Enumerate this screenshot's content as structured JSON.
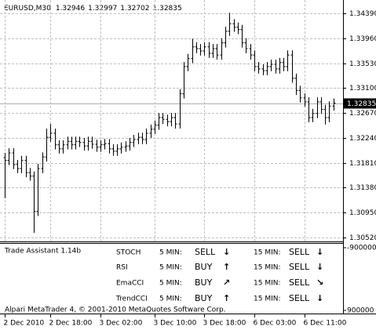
{
  "chart_data": {
    "type": "ohlc",
    "title": "EURUSD,M30",
    "header_ohlc": [
      1.32946,
      1.32997,
      1.32702,
      1.32835
    ],
    "current_price": 1.32835,
    "color": "#000000",
    "grid": true,
    "ylim": [
      1.30452,
      1.34552
    ],
    "yticks": [
      {
        "value": 1.3439,
        "label": "1.34390"
      },
      {
        "value": 1.3396,
        "label": "1.33960"
      },
      {
        "value": 1.3353,
        "label": "1.33530"
      },
      {
        "value": 1.331,
        "label": "1.33100"
      },
      {
        "value": 1.3267,
        "label": "1.32670"
      },
      {
        "value": 1.3224,
        "label": "1.32240"
      },
      {
        "value": 1.3181,
        "label": "1.31810"
      },
      {
        "value": 1.3138,
        "label": "1.31380"
      },
      {
        "value": 1.3095,
        "label": "1.30950"
      },
      {
        "value": 1.3052,
        "label": "1.30520"
      }
    ],
    "categories": [
      "2 Dec 2010",
      null,
      null,
      null,
      null,
      null,
      null,
      null,
      null,
      null,
      null,
      "2 Dec 18:00",
      null,
      null,
      null,
      null,
      null,
      null,
      null,
      null,
      null,
      null,
      null,
      "3 Dec 02:00",
      null,
      null,
      null,
      null,
      null,
      null,
      null,
      null,
      null,
      null,
      null,
      null,
      "3 Dec 10:00",
      null,
      null,
      null,
      null,
      null,
      null,
      null,
      null,
      null,
      null,
      null,
      "3 Dec 18:00",
      null,
      null,
      null,
      null,
      null,
      null,
      null,
      null,
      null,
      null,
      null,
      "6 Dec 03:00",
      null,
      null,
      null,
      null,
      null,
      null,
      null,
      null,
      null,
      null,
      null,
      "6 Dec 11:00",
      null,
      null,
      null,
      null,
      null,
      null,
      null
    ],
    "open": [
      1.319,
      1.3185,
      1.3198,
      1.3178,
      1.3171,
      1.3185,
      1.3164,
      1.3158,
      1.3097,
      1.3171,
      1.3191,
      1.3225,
      1.3232,
      1.3212,
      1.3205,
      1.3212,
      1.3218,
      1.3212,
      1.3218,
      1.3216,
      1.321,
      1.3218,
      1.3213,
      1.3208,
      1.3212,
      1.3214,
      1.3205,
      1.3201,
      1.3205,
      1.3208,
      1.321,
      1.3216,
      1.3221,
      1.3225,
      1.3221,
      1.3232,
      1.3239,
      1.3246,
      1.3259,
      1.3256,
      1.3252,
      1.3259,
      1.3248,
      1.33,
      1.3347,
      1.3361,
      1.3381,
      1.3378,
      1.3374,
      1.3381,
      1.337,
      1.3378,
      1.3367,
      1.3388,
      1.3408,
      1.3421,
      1.3415,
      1.3411,
      1.3388,
      1.3378,
      1.3367,
      1.3347,
      1.3343,
      1.334,
      1.3347,
      1.3351,
      1.3343,
      1.3354,
      1.3347,
      1.3367,
      1.3327,
      1.3306,
      1.3293,
      1.3286,
      1.3259,
      1.3266,
      1.3286,
      1.3273,
      1.3259,
      1.3279
    ],
    "high": [
      1.3198,
      1.3206,
      1.3206,
      1.3186,
      1.3193,
      1.3193,
      1.3172,
      1.3166,
      1.3179,
      1.3199,
      1.324,
      1.3248,
      1.324,
      1.322,
      1.322,
      1.3226,
      1.3226,
      1.3226,
      1.3226,
      1.3224,
      1.3226,
      1.3226,
      1.3221,
      1.322,
      1.3222,
      1.3222,
      1.3213,
      1.3213,
      1.3216,
      1.3218,
      1.3224,
      1.3229,
      1.3233,
      1.3233,
      1.324,
      1.3247,
      1.3254,
      1.3267,
      1.3267,
      1.3264,
      1.3267,
      1.3267,
      1.3308,
      1.3355,
      1.3369,
      1.3395,
      1.3389,
      1.3386,
      1.3389,
      1.3389,
      1.3386,
      1.3386,
      1.3396,
      1.3416,
      1.344,
      1.3429,
      1.3423,
      1.3419,
      1.3396,
      1.3386,
      1.3375,
      1.3355,
      1.3351,
      1.3355,
      1.3359,
      1.3359,
      1.3362,
      1.3362,
      1.3375,
      1.3375,
      1.3335,
      1.3314,
      1.3301,
      1.3294,
      1.3274,
      1.3294,
      1.3294,
      1.3281,
      1.3287,
      1.3292
    ],
    "low": [
      1.312,
      1.3177,
      1.317,
      1.3163,
      1.3163,
      1.3156,
      1.315,
      1.306,
      1.3089,
      1.3163,
      1.3183,
      1.3217,
      1.3204,
      1.3197,
      1.3197,
      1.3204,
      1.3204,
      1.3204,
      1.3208,
      1.3202,
      1.3202,
      1.3205,
      1.32,
      1.32,
      1.3204,
      1.3197,
      1.3193,
      1.3193,
      1.3197,
      1.32,
      1.3202,
      1.3208,
      1.3213,
      1.3213,
      1.3213,
      1.3224,
      1.3231,
      1.3238,
      1.3248,
      1.3244,
      1.3244,
      1.324,
      1.324,
      1.3292,
      1.3339,
      1.3353,
      1.337,
      1.3366,
      1.3366,
      1.3362,
      1.3362,
      1.3359,
      1.3359,
      1.338,
      1.34,
      1.3407,
      1.3403,
      1.338,
      1.337,
      1.3359,
      1.3339,
      1.3335,
      1.3332,
      1.3332,
      1.3339,
      1.3335,
      1.3335,
      1.3339,
      1.3339,
      1.3319,
      1.3298,
      1.3285,
      1.3278,
      1.3251,
      1.3251,
      1.3258,
      1.3265,
      1.3247,
      1.3251,
      1.3271
    ],
    "close": [
      1.3185,
      1.3198,
      1.3178,
      1.3171,
      1.3185,
      1.3164,
      1.3158,
      1.3097,
      1.3171,
      1.3191,
      1.3225,
      1.3232,
      1.3212,
      1.3205,
      1.3212,
      1.3218,
      1.3212,
      1.3218,
      1.3216,
      1.321,
      1.3218,
      1.3213,
      1.3208,
      1.3212,
      1.3214,
      1.3205,
      1.3201,
      1.3205,
      1.3208,
      1.321,
      1.3216,
      1.3221,
      1.3225,
      1.3221,
      1.3232,
      1.3239,
      1.3246,
      1.3259,
      1.3256,
      1.3252,
      1.3259,
      1.3248,
      1.33,
      1.3347,
      1.3361,
      1.3381,
      1.3378,
      1.3374,
      1.3381,
      1.337,
      1.3378,
      1.3367,
      1.3388,
      1.3408,
      1.3421,
      1.3415,
      1.3411,
      1.3388,
      1.3378,
      1.3367,
      1.3347,
      1.3343,
      1.334,
      1.3347,
      1.3351,
      1.3343,
      1.3354,
      1.3347,
      1.3367,
      1.3327,
      1.3306,
      1.3293,
      1.3286,
      1.3259,
      1.3266,
      1.3286,
      1.3273,
      1.3259,
      1.3279,
      1.3284
    ],
    "indicator": {
      "title": "Trade Assistant 1.14b",
      "yticks": [
        -900000,
        900000
      ],
      "name_color": "#e8dcae",
      "timeframe_color": "#c9d5e6",
      "rows": [
        {
          "name": "STOCH",
          "signals": [
            {
              "timeframe": "5 MIN:",
              "signal": "SELL",
              "arrow": "↓",
              "color": "#e00000"
            },
            {
              "timeframe": "15 MIN:",
              "signal": "SELL",
              "arrow": "↓",
              "color": "#e00000"
            }
          ]
        },
        {
          "name": "RSI",
          "signals": [
            {
              "timeframe": "5 MIN:",
              "signal": "BUY",
              "arrow": "↑",
              "color": "#00b800"
            },
            {
              "timeframe": "15 MIN:",
              "signal": "SELL",
              "arrow": "↓",
              "color": "#e00000"
            }
          ]
        },
        {
          "name": "EmaCCI",
          "signals": [
            {
              "timeframe": "5 MIN:",
              "signal": "BUY",
              "arrow": "↗",
              "color": "#00b800"
            },
            {
              "timeframe": "15 MIN:",
              "signal": "SELL",
              "arrow": "↘",
              "color": "#e00000"
            }
          ]
        },
        {
          "name": "TrendCCI",
          "signals": [
            {
              "timeframe": "5 MIN:",
              "signal": "BUY",
              "arrow": "↑",
              "color": "#00b800"
            },
            {
              "timeframe": "15 MIN:",
              "signal": "SELL",
              "arrow": "↓",
              "color": "#e00000"
            }
          ]
        }
      ]
    },
    "footer": "Alpari MetaTrader 4, © 2001-2010 MetaQuotes Software Corp."
  }
}
